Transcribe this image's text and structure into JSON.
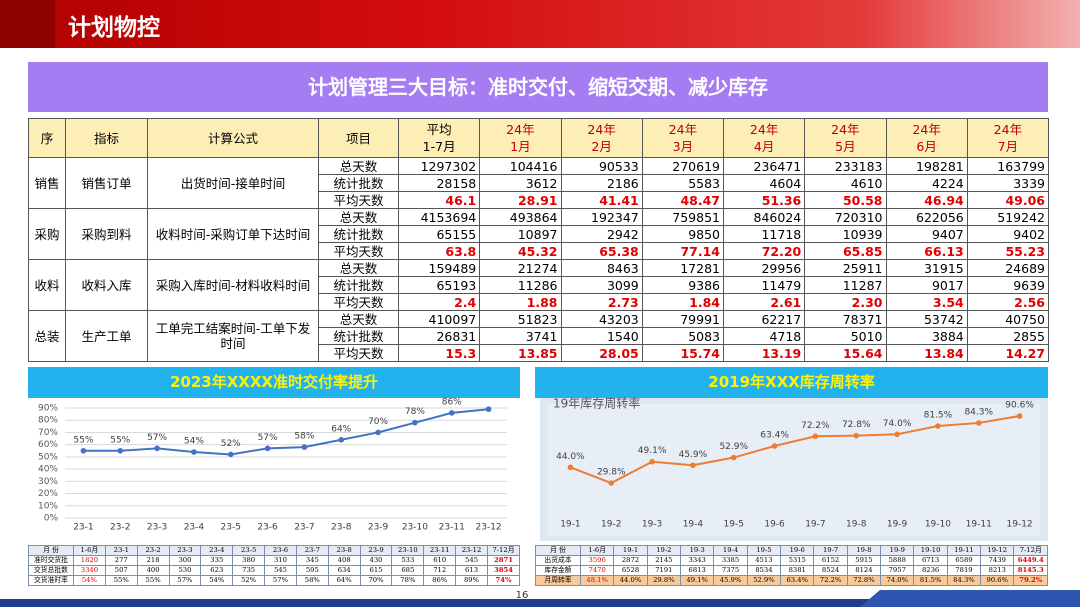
{
  "header": {
    "title": "计划物控"
  },
  "banner": {
    "title": "计划管理三大目标：准时交付、缩短交期、减少库存"
  },
  "table": {
    "headers": [
      "序",
      "指标",
      "计算公式",
      "项目",
      "平均\n1-7月",
      "24年\n1月",
      "24年\n2月",
      "24年\n3月",
      "24年\n4月",
      "24年\n5月",
      "24年\n6月",
      "24年\n7月"
    ],
    "groups": [
      {
        "seq": "销售",
        "indicator": "销售订单",
        "formula": "出货时间-接单时间",
        "rows": [
          {
            "item": "总天数",
            "values": [
              "1297302",
              "104416",
              "90533",
              "270619",
              "236471",
              "233183",
              "198281",
              "163799"
            ]
          },
          {
            "item": "统计批数",
            "values": [
              "28158",
              "3612",
              "2186",
              "5583",
              "4604",
              "4610",
              "4224",
              "3339"
            ]
          },
          {
            "item": "平均天数",
            "values": [
              "46.1",
              "28.91",
              "41.41",
              "48.47",
              "51.36",
              "50.58",
              "46.94",
              "49.06"
            ]
          }
        ]
      },
      {
        "seq": "采购",
        "indicator": "采购到料",
        "formula": "收料时间-采购订单下达时间",
        "rows": [
          {
            "item": "总天数",
            "values": [
              "4153694",
              "493864",
              "192347",
              "759851",
              "846024",
              "720310",
              "622056",
              "519242"
            ]
          },
          {
            "item": "统计批数",
            "values": [
              "65155",
              "10897",
              "2942",
              "9850",
              "11718",
              "10939",
              "9407",
              "9402"
            ]
          },
          {
            "item": "平均天数",
            "values": [
              "63.8",
              "45.32",
              "65.38",
              "77.14",
              "72.20",
              "65.85",
              "66.13",
              "55.23"
            ]
          }
        ]
      },
      {
        "seq": "收料",
        "indicator": "收料入库",
        "formula": "采购入库时间-材料收料时间",
        "rows": [
          {
            "item": "总天数",
            "values": [
              "159489",
              "21274",
              "8463",
              "17281",
              "29956",
              "25911",
              "31915",
              "24689"
            ]
          },
          {
            "item": "统计批数",
            "values": [
              "65193",
              "11286",
              "3099",
              "9386",
              "11479",
              "11287",
              "9017",
              "9639"
            ]
          },
          {
            "item": "平均天数",
            "values": [
              "2.4",
              "1.88",
              "2.73",
              "1.84",
              "2.61",
              "2.30",
              "3.54",
              "2.56"
            ]
          }
        ]
      },
      {
        "seq": "总装",
        "indicator": "生产工单",
        "formula": "工单完工结案时间-工单下发时间",
        "rows": [
          {
            "item": "总天数",
            "values": [
              "410097",
              "51823",
              "43203",
              "79991",
              "62217",
              "78371",
              "53742",
              "40750"
            ]
          },
          {
            "item": "统计批数",
            "values": [
              "26831",
              "3741",
              "1540",
              "5083",
              "4718",
              "5010",
              "3884",
              "2855"
            ]
          },
          {
            "item": "平均天数",
            "values": [
              "15.3",
              "13.85",
              "28.05",
              "15.74",
              "13.19",
              "15.64",
              "13.84",
              "14.27"
            ]
          }
        ]
      }
    ]
  },
  "chart_data": [
    {
      "type": "line",
      "title": "2023年XXXX准时交付率提升",
      "categories": [
        "23-1",
        "23-2",
        "23-3",
        "23-4",
        "23-5",
        "23-6",
        "23-7",
        "23-8",
        "23-9",
        "23-10",
        "23-11",
        "23-12"
      ],
      "values": [
        55,
        55,
        57,
        54,
        52,
        57,
        58,
        64,
        70,
        78,
        86,
        89
      ],
      "value_labels": [
        "55%",
        "55%",
        "57%",
        "54%",
        "52%",
        "57%",
        "58%",
        "64%",
        "70%",
        "78%",
        "86%",
        null
      ],
      "color": "#4472c4",
      "ylim": [
        0,
        90
      ],
      "yticks": [
        {
          "value": 0,
          "label": "0%"
        },
        {
          "value": 10,
          "label": "10%"
        },
        {
          "value": 20,
          "label": "20%"
        },
        {
          "value": 30,
          "label": "30%"
        },
        {
          "value": 40,
          "label": "40%"
        },
        {
          "value": 50,
          "label": "50%"
        },
        {
          "value": 60,
          "label": "60%"
        },
        {
          "value": 70,
          "label": "70%"
        },
        {
          "value": 80,
          "label": "80%"
        },
        {
          "value": 90,
          "label": "90%"
        }
      ],
      "grid": true
    },
    {
      "type": "line",
      "title": "2019年XXX库存周转率",
      "subtitle": "19年库存周转率",
      "categories": [
        "19-1",
        "19-2",
        "19-3",
        "19-4",
        "19-5",
        "19-6",
        "19-7",
        "19-8",
        "19-9",
        "19-10",
        "19-11",
        "19-12"
      ],
      "values": [
        44.0,
        29.8,
        49.1,
        45.9,
        52.9,
        63.4,
        72.2,
        72.8,
        74.0,
        81.5,
        84.3,
        90.6
      ],
      "value_labels": [
        "44.0%",
        "29.8%",
        "49.1%",
        "45.9%",
        "52.9%",
        "63.4%",
        "72.2%",
        "72.8%",
        "74.0%",
        "81.5%",
        "84.3%",
        "90.6%"
      ],
      "color": "#ed7d31",
      "grid": false
    }
  ],
  "left_table": {
    "headers": [
      "月  份",
      "1-6月",
      "23-1",
      "23-2",
      "23-3",
      "23-4",
      "23-5",
      "23-6",
      "23-7",
      "23-8",
      "23-9",
      "23-10",
      "23-11",
      "23-12",
      "7-12月"
    ],
    "rows": [
      {
        "label": "准时交货批",
        "values": [
          "1820",
          "277",
          "218",
          "300",
          "335",
          "380",
          "310",
          "345",
          "408",
          "430",
          "533",
          "610",
          "545",
          "2871"
        ]
      },
      {
        "label": "交货总批数",
        "values": [
          "3340",
          "507",
          "400",
          "530",
          "623",
          "735",
          "545",
          "595",
          "634",
          "615",
          "685",
          "712",
          "613",
          "3854"
        ]
      },
      {
        "label": "交货准时率",
        "values": [
          "54%",
          "55%",
          "55%",
          "57%",
          "54%",
          "52%",
          "57%",
          "58%",
          "64%",
          "70%",
          "78%",
          "86%",
          "89%",
          "74%"
        ]
      }
    ]
  },
  "right_table": {
    "headers": [
      "月  份",
      "1-6月",
      "19-1",
      "19-2",
      "19-3",
      "19-4",
      "19-5",
      "19-6",
      "19-7",
      "19-8",
      "19-9",
      "19-10",
      "19-11",
      "19-12",
      "7-12月"
    ],
    "rows": [
      {
        "label": "出货成本",
        "values": [
          "3596",
          "2872",
          "2145",
          "3343",
          "3385",
          "4513",
          "5315",
          "6152",
          "5915",
          "5888",
          "6713",
          "6589",
          "7439",
          "6449.4"
        ]
      },
      {
        "label": "库存金额",
        "values": [
          "7470",
          "6528",
          "7191",
          "6813",
          "7375",
          "8534",
          "8381",
          "8524",
          "8124",
          "7957",
          "8236",
          "7819",
          "8213",
          "8145.3"
        ]
      },
      {
        "label": "月周转率",
        "values": [
          "48.1%",
          "44.0%",
          "29.8%",
          "49.1%",
          "45.9%",
          "52.9%",
          "63.4%",
          "72.2%",
          "72.8%",
          "74.0%",
          "81.5%",
          "84.3%",
          "90.6%",
          "79.2%"
        ]
      }
    ]
  },
  "page_number": "16"
}
